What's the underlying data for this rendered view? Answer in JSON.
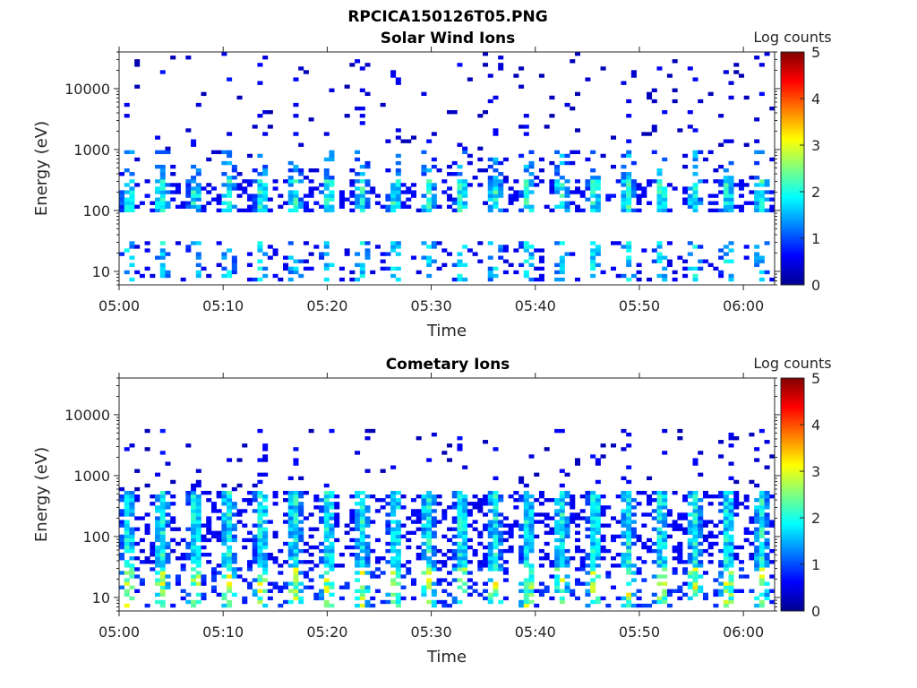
{
  "figure_title": "RPCICA150126T05.PNG",
  "colormap": "jet",
  "chart_data": [
    {
      "type": "heatmap",
      "title": "Solar Wind Ions",
      "xlabel": "Time",
      "ylabel": "Energy (eV)",
      "x_ticks": [
        "05:00",
        "05:10",
        "05:20",
        "05:30",
        "05:40",
        "05:50",
        "06:00"
      ],
      "x_range_minutes": [
        0,
        63
      ],
      "y_scale": "log",
      "y_range": [
        6,
        40000
      ],
      "y_ticks": [
        10,
        100,
        1000,
        10000
      ],
      "y_tick_labels": [
        "10",
        "100",
        "1000",
        "10000"
      ],
      "colorbar": {
        "label": "Log counts",
        "range": [
          0,
          5
        ],
        "ticks": [
          "0",
          "1",
          "2",
          "3",
          "4",
          "5"
        ]
      },
      "cycle_minutes": 3.2,
      "bands": [
        {
          "e_min": 7,
          "e_max": 30,
          "peak_log_counts": 2.0,
          "occupancy": 0.35
        },
        {
          "e_min": 95,
          "e_max": 330,
          "peak_log_counts": 2.3,
          "occupancy": 0.75
        },
        {
          "e_min": 330,
          "e_max": 1000,
          "peak_log_counts": 1.6,
          "occupancy": 0.25
        },
        {
          "e_min": 1000,
          "e_max": 40000,
          "peak_log_counts": 0.6,
          "occupancy": 0.07
        }
      ]
    },
    {
      "type": "heatmap",
      "title": "Cometary Ions",
      "xlabel": "Time",
      "ylabel": "Energy (eV)",
      "x_ticks": [
        "05:00",
        "05:10",
        "05:20",
        "05:30",
        "05:40",
        "05:50",
        "06:00"
      ],
      "x_range_minutes": [
        0,
        63
      ],
      "y_scale": "log",
      "y_range": [
        6,
        40000
      ],
      "y_ticks": [
        10,
        100,
        1000,
        10000
      ],
      "y_tick_labels": [
        "10",
        "100",
        "1000",
        "10000"
      ],
      "colorbar": {
        "label": "Log counts",
        "range": [
          0,
          5
        ],
        "ticks": [
          "0",
          "1",
          "2",
          "3",
          "4",
          "5"
        ]
      },
      "cycle_minutes": 3.2,
      "bands": [
        {
          "e_min": 7,
          "e_max": 30,
          "peak_log_counts": 3.2,
          "occupancy": 0.5
        },
        {
          "e_min": 30,
          "e_max": 550,
          "peak_log_counts": 2.2,
          "occupancy": 0.8
        },
        {
          "e_min": 550,
          "e_max": 6000,
          "peak_log_counts": 0.6,
          "occupancy": 0.08
        }
      ]
    }
  ]
}
